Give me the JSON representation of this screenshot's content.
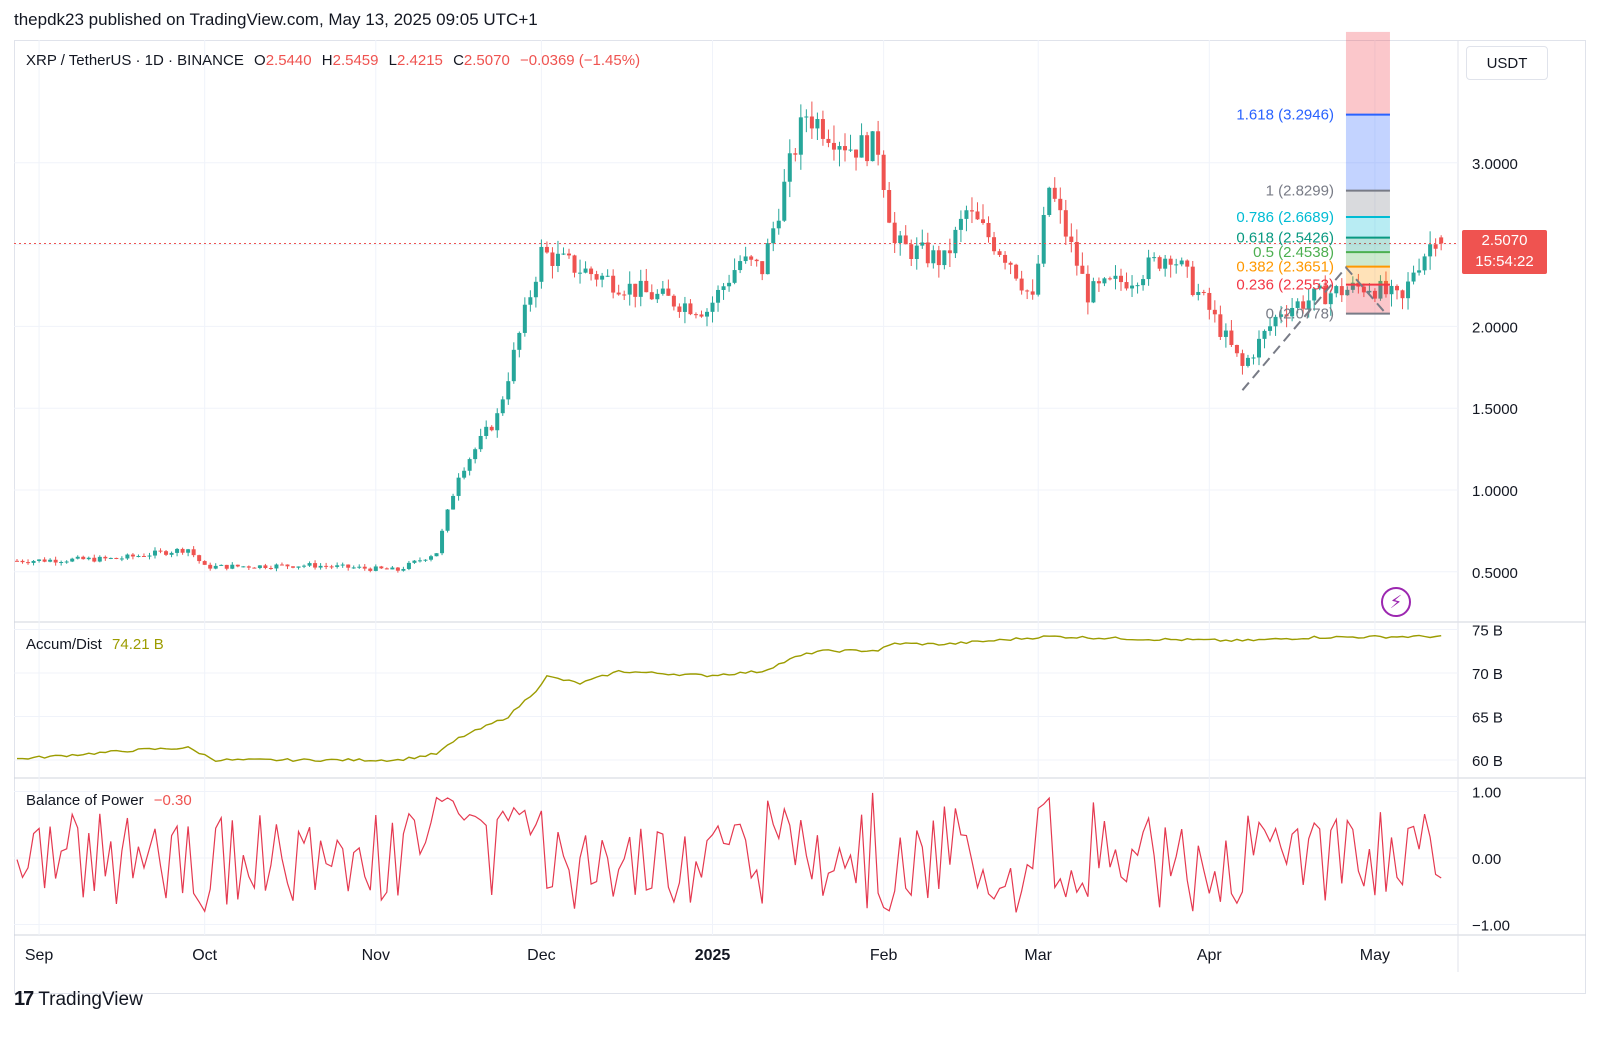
{
  "header": {
    "published_text": "thepdk23 published on TradingView.com, May 13, 2025 09:05 UTC+1"
  },
  "symbol": {
    "name": "XRP / TetherUS · 1D · BINANCE",
    "open_label": "O",
    "open": "2.5440",
    "high_label": "H",
    "high": "2.5459",
    "low_label": "L",
    "low": "2.4215",
    "close_label": "C",
    "close": "2.5070",
    "change": "−0.0369 (−1.45%)"
  },
  "quote_currency": "USDT",
  "last_price": {
    "value": "2.5070",
    "countdown": "15:54:22"
  },
  "indicators": {
    "accum_dist": {
      "label": "Accum/Dist",
      "value": "74.21 B"
    },
    "balance_of_power": {
      "label": "Balance of Power",
      "value": "−0.30"
    }
  },
  "footer": {
    "logo_text": "TradingView"
  },
  "colors": {
    "up": "#26a69a",
    "down": "#ef5350",
    "ad_line": "#9c9c00",
    "bop_line": "#e53950",
    "grid": "#f0f3fa"
  },
  "chart_data": [
    {
      "type": "candlestick",
      "title": "XRP / TetherUS · 1D · BINANCE",
      "x_ticks": [
        "Sep",
        "Oct",
        "Nov",
        "Dec",
        "2025",
        "Feb",
        "Mar",
        "Apr",
        "May"
      ],
      "y_ticks": [
        "3.0000",
        "2.5000",
        "2.0000",
        "1.5000",
        "1.0000",
        "0.5000"
      ],
      "ylim": [
        0.2,
        3.8
      ],
      "close_series": [
        [
          "2024-09-01",
          0.57
        ],
        [
          "2024-09-15",
          0.58
        ],
        [
          "2024-09-28",
          0.64
        ],
        [
          "2024-10-01",
          0.53
        ],
        [
          "2024-10-20",
          0.54
        ],
        [
          "2024-11-05",
          0.51
        ],
        [
          "2024-11-12",
          0.62
        ],
        [
          "2024-11-16",
          1.1
        ],
        [
          "2024-11-23",
          1.45
        ],
        [
          "2024-12-01",
          2.45
        ],
        [
          "2024-12-08",
          2.35
        ],
        [
          "2024-12-20",
          2.2
        ],
        [
          "2024-12-31",
          2.1
        ],
        [
          "2025-01-06",
          2.4
        ],
        [
          "2025-01-10",
          2.35
        ],
        [
          "2025-01-16",
          3.1
        ],
        [
          "2025-01-18",
          3.3
        ],
        [
          "2025-01-26",
          3.1
        ],
        [
          "2025-01-31",
          3.1
        ],
        [
          "2025-02-03",
          2.5
        ],
        [
          "2025-02-12",
          2.4
        ],
        [
          "2025-02-16",
          2.7
        ],
        [
          "2025-02-24",
          2.4
        ],
        [
          "2025-02-28",
          2.15
        ],
        [
          "2025-03-03",
          2.85
        ],
        [
          "2025-03-10",
          2.2
        ],
        [
          "2025-03-18",
          2.3
        ],
        [
          "2025-03-25",
          2.45
        ],
        [
          "2025-04-01",
          2.1
        ],
        [
          "2025-04-07",
          1.75
        ],
        [
          "2025-04-14",
          2.1
        ],
        [
          "2025-04-22",
          2.2
        ],
        [
          "2025-04-30",
          2.25
        ],
        [
          "2025-05-06",
          2.15
        ],
        [
          "2025-05-08",
          2.35
        ],
        [
          "2025-05-12",
          2.55
        ],
        [
          "2025-05-13",
          2.507
        ]
      ],
      "horizontal_line": 2.507,
      "fibonacci_levels": [
        {
          "label": "1.618 (3.2946)",
          "ratio": 1.618,
          "price": 3.2946,
          "color": "#2962ff"
        },
        {
          "label": "1 (2.8299)",
          "ratio": 1,
          "price": 2.8299,
          "color": "#787b86"
        },
        {
          "label": "0.786 (2.6689)",
          "ratio": 0.786,
          "price": 2.6689,
          "color": "#00bcd4"
        },
        {
          "label": "0.618 (2.5426)",
          "ratio": 0.618,
          "price": 2.5426,
          "color": "#089981"
        },
        {
          "label": "0.5 (2.4538)",
          "ratio": 0.5,
          "price": 2.4538,
          "color": "#4caf50"
        },
        {
          "label": "0.382 (2.3651)",
          "ratio": 0.382,
          "price": 2.3651,
          "color": "#ff9800"
        },
        {
          "label": "0.236 (2.2553)",
          "ratio": 0.236,
          "price": 2.2553,
          "color": "#f23645"
        },
        {
          "label": "0 (2.0778)",
          "ratio": 0,
          "price": 2.0778,
          "color": "#787b86"
        }
      ]
    },
    {
      "type": "line",
      "title": "Accum/Dist",
      "y_ticks": [
        "75 B",
        "70 B",
        "65 B",
        "60 B"
      ],
      "ylim": [
        59,
        75.5
      ],
      "points": [
        [
          "2024-09-01",
          60.3
        ],
        [
          "2024-09-20",
          61.2
        ],
        [
          "2024-09-28",
          61.4
        ],
        [
          "2024-10-03",
          60.0
        ],
        [
          "2024-11-05",
          60.0
        ],
        [
          "2024-11-12",
          60.7
        ],
        [
          "2024-11-16",
          62.5
        ],
        [
          "2024-11-20",
          63.6
        ],
        [
          "2024-11-25",
          65.0
        ],
        [
          "2024-11-30",
          68.0
        ],
        [
          "2024-12-02",
          69.6
        ],
        [
          "2024-12-08",
          68.8
        ],
        [
          "2024-12-15",
          70.2
        ],
        [
          "2024-12-31",
          69.7
        ],
        [
          "2025-01-10",
          70.2
        ],
        [
          "2025-01-16",
          71.8
        ],
        [
          "2025-01-20",
          72.5
        ],
        [
          "2025-01-31",
          72.6
        ],
        [
          "2025-02-03",
          73.4
        ],
        [
          "2025-02-12",
          73.3
        ],
        [
          "2025-03-03",
          74.2
        ],
        [
          "2025-03-20",
          73.9
        ],
        [
          "2025-04-07",
          73.7
        ],
        [
          "2025-04-20",
          74.1
        ],
        [
          "2025-05-13",
          74.21
        ]
      ]
    },
    {
      "type": "line",
      "title": "Balance of Power",
      "y_ticks": [
        "1.00",
        "0.00",
        "−1.00"
      ],
      "ylim": [
        -1.0,
        1.0
      ],
      "current_value": -0.3
    }
  ]
}
